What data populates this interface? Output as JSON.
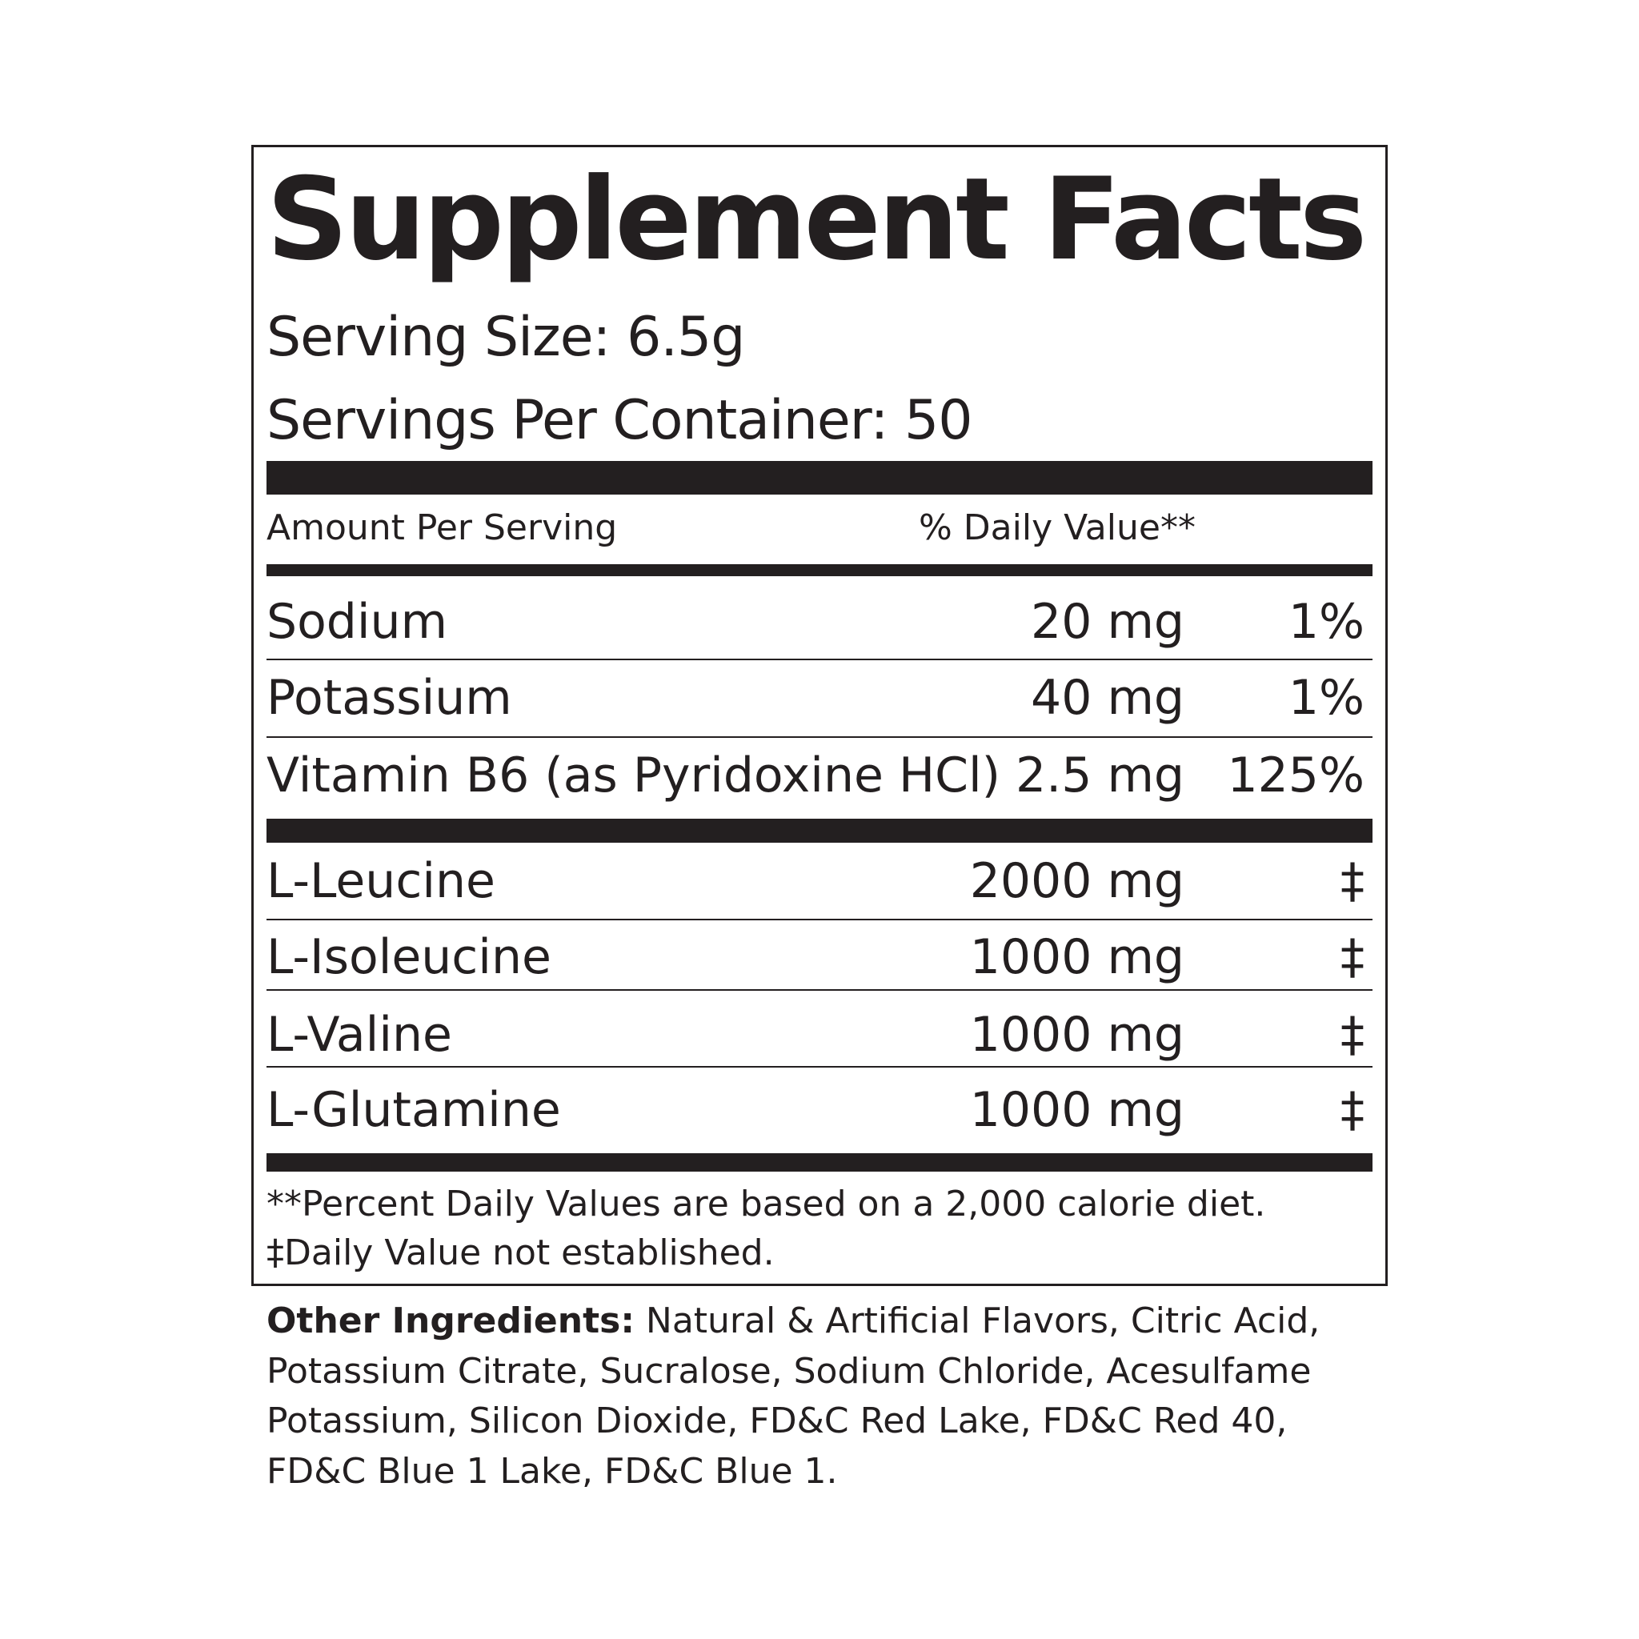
{
  "title": "Supplement Facts",
  "serving_size": "Serving Size: 6.5g",
  "servings_per_container": "Servings Per Container: 50",
  "header": {
    "amount": "Amount Per Serving",
    "daily_value": "% Daily Value**"
  },
  "vitamins": [
    {
      "name": "Sodium",
      "amount": "20 mg",
      "dv": "1%"
    },
    {
      "name": "Potassium",
      "amount": "40 mg",
      "dv": "1%"
    },
    {
      "name": "Vitamin B6 (as Pyridoxine HCl)",
      "amount": "2.5 mg",
      "dv": "125%"
    }
  ],
  "amino_acids": [
    {
      "name": "L-Leucine",
      "amount": "2000 mg",
      "dv": "‡"
    },
    {
      "name": "L-Isoleucine",
      "amount": "1000 mg",
      "dv": "‡"
    },
    {
      "name": "L-Valine",
      "amount": "1000 mg",
      "dv": "‡"
    },
    {
      "name": "L-Glutamine",
      "amount": "1000 mg",
      "dv": "‡"
    }
  ],
  "footnotes": [
    "**Percent Daily Values are based on a 2,000 calorie diet.",
    "‡Daily Value not established."
  ],
  "other_ingredients": {
    "label": "Other Ingredients:",
    "text": " Natural & Artificial Flavors, Citric Acid, Potassium Citrate, Sucralose, Sodium Chloride, Acesulfame Potassium, Silicon Dioxide, FD&C Red Lake, FD&C Red 40, FD&C Blue 1 Lake, FD&C Blue 1."
  }
}
